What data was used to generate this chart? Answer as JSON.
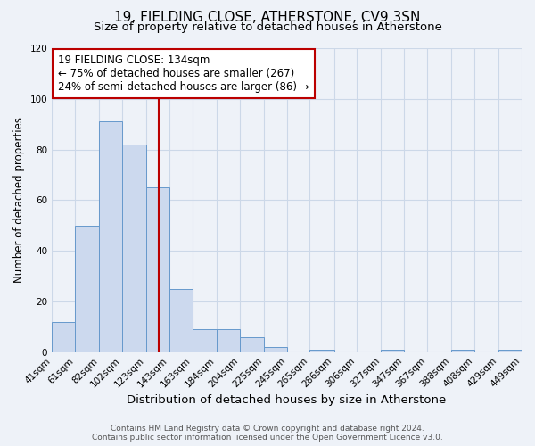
{
  "title": "19, FIELDING CLOSE, ATHERSTONE, CV9 3SN",
  "subtitle": "Size of property relative to detached houses in Atherstone",
  "xlabel": "Distribution of detached houses by size in Atherstone",
  "ylabel": "Number of detached properties",
  "bar_left_edges": [
    41,
    61,
    82,
    102,
    123,
    143,
    163,
    184,
    204,
    225,
    245,
    265,
    286,
    306,
    327,
    347,
    367,
    388,
    408,
    429
  ],
  "bar_widths": [
    20,
    21,
    20,
    21,
    20,
    20,
    21,
    20,
    21,
    20,
    20,
    21,
    20,
    21,
    20,
    20,
    21,
    20,
    21,
    20
  ],
  "bar_heights": [
    12,
    50,
    91,
    82,
    65,
    25,
    9,
    9,
    6,
    2,
    0,
    1,
    0,
    0,
    1,
    0,
    0,
    1,
    0,
    1
  ],
  "tick_labels": [
    "41sqm",
    "61sqm",
    "82sqm",
    "102sqm",
    "123sqm",
    "143sqm",
    "163sqm",
    "184sqm",
    "204sqm",
    "225sqm",
    "245sqm",
    "265sqm",
    "286sqm",
    "306sqm",
    "327sqm",
    "347sqm",
    "367sqm",
    "388sqm",
    "408sqm",
    "429sqm",
    "449sqm"
  ],
  "bar_facecolor": "#ccd9ee",
  "bar_edgecolor": "#6699cc",
  "grid_color": "#ccd8e8",
  "vline_x": 134,
  "vline_color": "#bb0000",
  "annotation_text": "19 FIELDING CLOSE: 134sqm\n← 75% of detached houses are smaller (267)\n24% of semi-detached houses are larger (86) →",
  "annotation_box_edgecolor": "#bb0000",
  "annotation_box_facecolor": "#ffffff",
  "ylim": [
    0,
    120
  ],
  "yticks": [
    0,
    20,
    40,
    60,
    80,
    100,
    120
  ],
  "footer_line1": "Contains HM Land Registry data © Crown copyright and database right 2024.",
  "footer_line2": "Contains public sector information licensed under the Open Government Licence v3.0.",
  "background_color": "#eef2f8",
  "title_fontsize": 11,
  "subtitle_fontsize": 9.5,
  "xlabel_fontsize": 9.5,
  "ylabel_fontsize": 8.5,
  "tick_fontsize": 7.5,
  "annotation_fontsize": 8.5,
  "footer_fontsize": 6.5
}
